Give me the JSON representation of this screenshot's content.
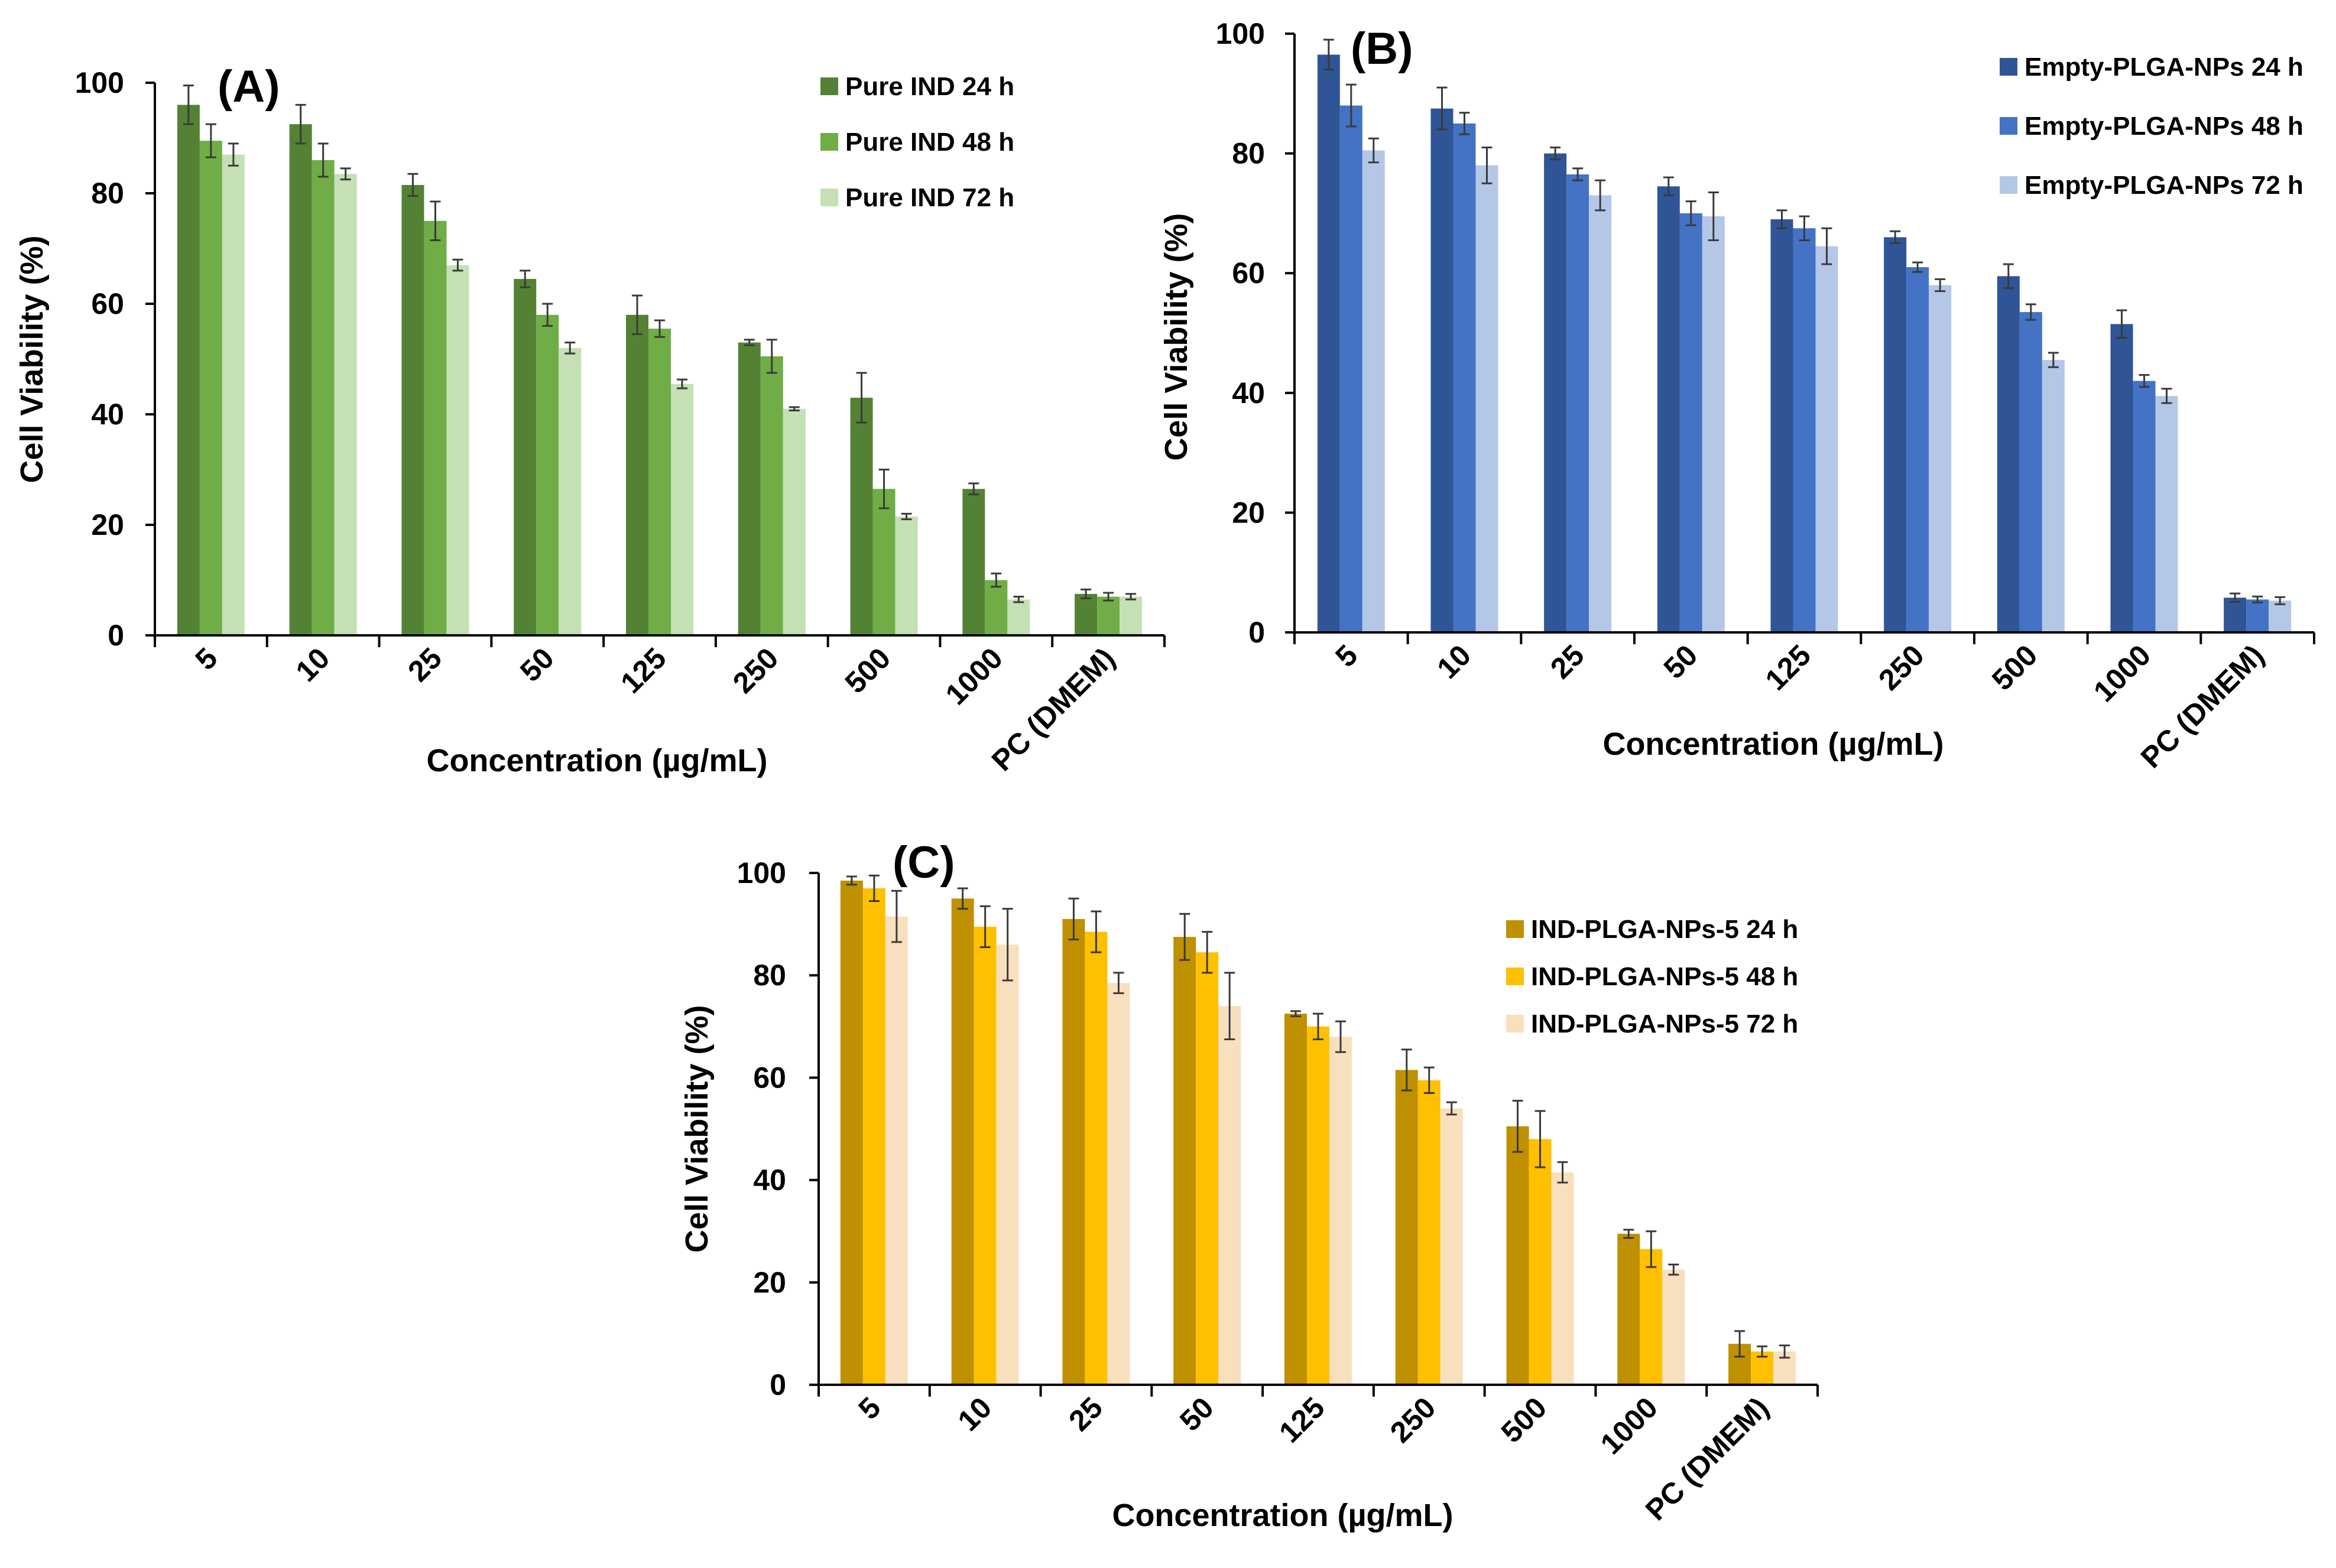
{
  "chart_data": [
    {
      "type": "bar",
      "panel_label": "(A)",
      "xlabel": "Concentration (µg/mL)",
      "ylabel": "Cell Viability (%)",
      "ylim": [
        0,
        100
      ],
      "yticks": [
        "0",
        "20",
        "40",
        "60",
        "80",
        "100"
      ],
      "categories": [
        "5",
        "10",
        "25",
        "50",
        "125",
        "250",
        "500",
        "1000",
        "PC (DMEM)"
      ],
      "legend_position": "top-right",
      "grid": false,
      "error_bars": true,
      "series": [
        {
          "name": "Pure IND 24 h",
          "color": "#548235",
          "values": [
            96,
            92.5,
            81.5,
            64.5,
            58,
            53,
            43,
            26.5,
            7.5
          ],
          "errors": [
            3.5,
            3.5,
            2,
            1.5,
            3.5,
            0.5,
            4.5,
            1,
            0.8
          ]
        },
        {
          "name": "Pure IND 48 h",
          "color": "#70AD47",
          "values": [
            89.5,
            86,
            75,
            58,
            55.5,
            50.5,
            26.5,
            10,
            7
          ],
          "errors": [
            3,
            3,
            3.5,
            2,
            1.5,
            3,
            3.5,
            1.2,
            0.7
          ]
        },
        {
          "name": "Pure IND 72 h",
          "color": "#C5E0B4",
          "values": [
            87,
            83.5,
            67,
            52,
            45.5,
            41,
            21.5,
            6.5,
            7
          ],
          "errors": [
            2,
            1,
            1,
            1,
            0.8,
            0.3,
            0.5,
            0.5,
            0.5
          ]
        }
      ]
    },
    {
      "type": "bar",
      "panel_label": "(B)",
      "xlabel": "Concentration (µg/mL)",
      "ylabel": "Cell Viability (%)",
      "ylim": [
        0,
        100
      ],
      "yticks": [
        "0",
        "20",
        "40",
        "60",
        "80",
        "100"
      ],
      "categories": [
        "5",
        "10",
        "25",
        "50",
        "125",
        "250",
        "500",
        "1000",
        "PC (DMEM)"
      ],
      "legend_position": "top-right",
      "grid": false,
      "error_bars": true,
      "series": [
        {
          "name": "Empty-PLGA-NPs 24 h",
          "color": "#2F5597",
          "values": [
            96.5,
            87.5,
            80,
            74.5,
            69,
            66,
            59.5,
            51.5,
            5.8
          ],
          "errors": [
            2.5,
            3.5,
            1,
            1.5,
            1.5,
            1,
            2,
            2.3,
            0.7
          ]
        },
        {
          "name": "Empty-PLGA-NPs 48 h",
          "color": "#4472C4",
          "values": [
            88,
            85,
            76.5,
            70,
            67.5,
            61,
            53.5,
            42,
            5.5
          ],
          "errors": [
            3.5,
            1.8,
            1,
            2,
            2,
            0.8,
            1.3,
            1,
            0.5
          ]
        },
        {
          "name": "Empty-PLGA-NPs 72 h",
          "color": "#B4C7E7",
          "values": [
            80.5,
            78,
            73,
            69.5,
            64.5,
            58,
            45.5,
            39.5,
            5.3
          ],
          "errors": [
            2,
            3,
            2.5,
            4,
            3,
            1,
            1.2,
            1.2,
            0.6
          ]
        }
      ]
    },
    {
      "type": "bar",
      "panel_label": "(C)",
      "xlabel": "Concentration (µg/mL)",
      "ylabel": "Cell Viability (%)",
      "ylim": [
        0,
        100
      ],
      "yticks": [
        "0",
        "20",
        "40",
        "60",
        "80",
        "100"
      ],
      "categories": [
        "5",
        "10",
        "25",
        "50",
        "125",
        "250",
        "500",
        "1000",
        "PC (DMEM)"
      ],
      "legend_position": "top-right",
      "grid": false,
      "error_bars": true,
      "series": [
        {
          "name": "IND-PLGA-NPs-5 24 h",
          "color": "#BF9000",
          "values": [
            98.5,
            95,
            91,
            87.5,
            72.5,
            61.5,
            50.5,
            29.5,
            8
          ],
          "errors": [
            0.8,
            2,
            4,
            4.5,
            0.5,
            4,
            5,
            0.8,
            2.5
          ]
        },
        {
          "name": "IND-PLGA-NPs-5 48 h",
          "color": "#FFC000",
          "values": [
            97,
            89.5,
            88.5,
            84.5,
            70,
            59.5,
            48,
            26.5,
            6.5
          ],
          "errors": [
            2.5,
            4,
            4,
            4,
            2.5,
            2.5,
            5.5,
            3.5,
            1
          ]
        },
        {
          "name": "IND-PLGA-NPs-5 72 h",
          "color": "#F8E0BE",
          "values": [
            91.5,
            86,
            78.5,
            74,
            68,
            54,
            41.5,
            22.5,
            6.5
          ],
          "errors": [
            5,
            7,
            2,
            6.5,
            3,
            1.2,
            2,
            1,
            1.2
          ]
        }
      ]
    }
  ]
}
